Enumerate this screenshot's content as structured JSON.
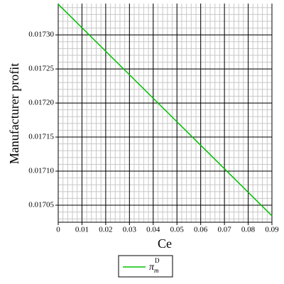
{
  "chart_data": {
    "type": "line",
    "x_label": "Ce",
    "y_label": "Manufacturer profit",
    "x": [
      0,
      0.01,
      0.02,
      0.03,
      0.04,
      0.05,
      0.06,
      0.07,
      0.08,
      0.09
    ],
    "series": [
      {
        "name": "π",
        "name_sub": "m",
        "name_sup": "D",
        "color": "#00c000",
        "values": [
          0.017345,
          0.0173105,
          0.017276,
          0.0172415,
          0.017207,
          0.0171725,
          0.017138,
          0.0171035,
          0.017069,
          0.0170345
        ]
      }
    ],
    "xlim": [
      0,
      0.09
    ],
    "ylim": [
      0.017025,
      0.017346
    ],
    "xticks": [
      0,
      0.01,
      0.02,
      0.03,
      0.04,
      0.05,
      0.06,
      0.07,
      0.08,
      0.09
    ],
    "yticks": [
      {
        "value": 0.01705,
        "label": "0.01705"
      },
      {
        "value": 0.0171,
        "label": "0.01710"
      },
      {
        "value": 0.01715,
        "label": "0.01715"
      },
      {
        "value": 0.0172,
        "label": "0.01720"
      },
      {
        "value": 0.01725,
        "label": "0.01725"
      },
      {
        "value": 0.0173,
        "label": "0.01730"
      }
    ],
    "grid": true
  }
}
